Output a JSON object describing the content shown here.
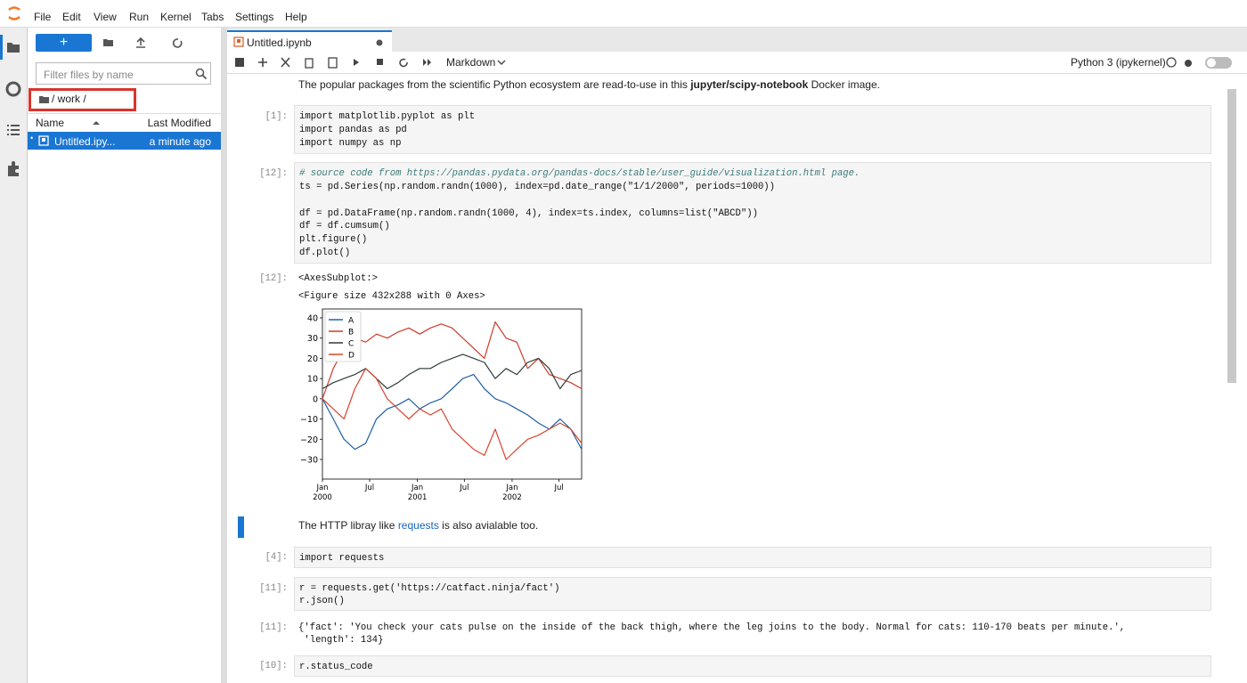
{
  "menu": [
    "File",
    "Edit",
    "View",
    "Run",
    "Kernel",
    "Tabs",
    "Settings",
    "Help"
  ],
  "file_browser": {
    "filter_placeholder": "Filter files by name",
    "path": "/ work /",
    "columns": [
      "Name",
      "Last Modified"
    ],
    "files": [
      {
        "name": "Untitled.ipy...",
        "modified": "a minute ago"
      }
    ]
  },
  "tab": {
    "title": "Untitled.ipynb"
  },
  "toolbar": {
    "cell_type": "Markdown",
    "kernel": "Python 3 (ipykernel)"
  },
  "cells": [
    {
      "type": "markdown",
      "parts": [
        "The popular packages from the scientific Python ecosystem are read-to-use in this ",
        "jupyter/scipy-notebook",
        " Docker image."
      ]
    },
    {
      "type": "code",
      "prompt": "[1]:",
      "lines": [
        "import matplotlib.pyplot as plt",
        "import pandas as pd",
        "import numpy as np"
      ]
    },
    {
      "type": "code",
      "prompt": "[12]:",
      "lines": [
        "# source code from https://pandas.pydata.org/pandas-docs/stable/user_guide/visualization.html page.",
        "ts = pd.Series(np.random.randn(1000), index=pd.date_range(\"1/1/2000\", periods=1000))",
        "df = pd.DataFrame(np.random.randn(1000, 4), index=ts.index, columns=list(\"ABCD\"))",
        "df = df.cumsum()",
        "plt.figure()",
        "df.plot()"
      ],
      "output": {
        "prompt": "[12]:",
        "lines": [
          "<AxesSubplot:>",
          "<Figure size 432x288 with 0 Axes>"
        ],
        "chart_data": {
          "type": "line",
          "x": [
            0,
            42,
            83,
            125,
            167,
            208,
            250,
            291,
            333,
            375,
            416,
            458,
            500,
            541,
            583,
            624,
            666,
            708,
            749,
            791,
            833,
            874,
            916,
            957,
            999
          ],
          "xlim": [
            0,
            999
          ],
          "xticks": [
            {
              "value": 0,
              "label": "Jan",
              "sublabel": "2000"
            },
            {
              "value": 182,
              "label": "Jul"
            },
            {
              "value": 366,
              "label": "Jan",
              "sublabel": "2001"
            },
            {
              "value": 547,
              "label": "Jul"
            },
            {
              "value": 731,
              "label": "Jan",
              "sublabel": "2002"
            },
            {
              "value": 912,
              "label": "Jul"
            }
          ],
          "ylim": [
            -39.7,
            44.4
          ],
          "yticks": [
            40,
            30,
            20,
            10,
            0,
            {
              "value": -10,
              "label": "−10"
            },
            {
              "value": -20,
              "label": "−20"
            },
            {
              "value": -30,
              "label": "−30"
            }
          ],
          "legend": "upper left",
          "series": [
            {
              "name": "A",
              "color": "#1f5fa8",
              "values": [
                0,
                -10,
                -20,
                -25,
                -22,
                -10,
                -5,
                -3,
                0,
                -5,
                -2,
                0,
                5,
                10,
                12,
                5,
                0,
                -2,
                -5,
                -8,
                -12,
                -15,
                -10,
                -15,
                -25
              ]
            },
            {
              "name": "B",
              "color": "#d03a2a",
              "values": [
                0,
                15,
                25,
                30,
                28,
                32,
                30,
                33,
                35,
                32,
                35,
                37,
                35,
                30,
                25,
                20,
                38,
                30,
                28,
                15,
                20,
                12,
                10,
                8,
                5
              ]
            },
            {
              "name": "C",
              "color": "#2f3b38",
              "values": [
                5,
                8,
                10,
                12,
                15,
                10,
                5,
                8,
                12,
                15,
                15,
                18,
                20,
                22,
                20,
                18,
                10,
                15,
                12,
                18,
                20,
                15,
                5,
                12,
                14
              ]
            },
            {
              "name": "D",
              "color": "#d8452e",
              "values": [
                0,
                -5,
                -10,
                5,
                15,
                10,
                0,
                -5,
                -10,
                -5,
                -8,
                -5,
                -15,
                -20,
                -25,
                -28,
                -15,
                -30,
                -25,
                -20,
                -18,
                -15,
                -12,
                -15,
                -22
              ]
            }
          ]
        }
      }
    },
    {
      "type": "markdown",
      "parts": [
        "The HTTP libray like ",
        "requests",
        " is also avialable too."
      ]
    },
    {
      "type": "code",
      "prompt": "[4]:",
      "lines": [
        "import requests"
      ]
    },
    {
      "type": "code",
      "prompt": "[11]:",
      "lines": [
        "r = requests.get('https://catfact.ninja/fact')",
        "r.json()"
      ],
      "output": {
        "prompt": "[11]:",
        "lines": [
          "{'fact': 'You check your cats pulse on the inside of the back thigh, where the leg joins to the body. Normal for cats: 110-170 beats per minute.',",
          " 'length': 134}"
        ]
      }
    },
    {
      "type": "code",
      "prompt": "[10]:",
      "lines": [
        "r.status_code"
      ]
    }
  ]
}
